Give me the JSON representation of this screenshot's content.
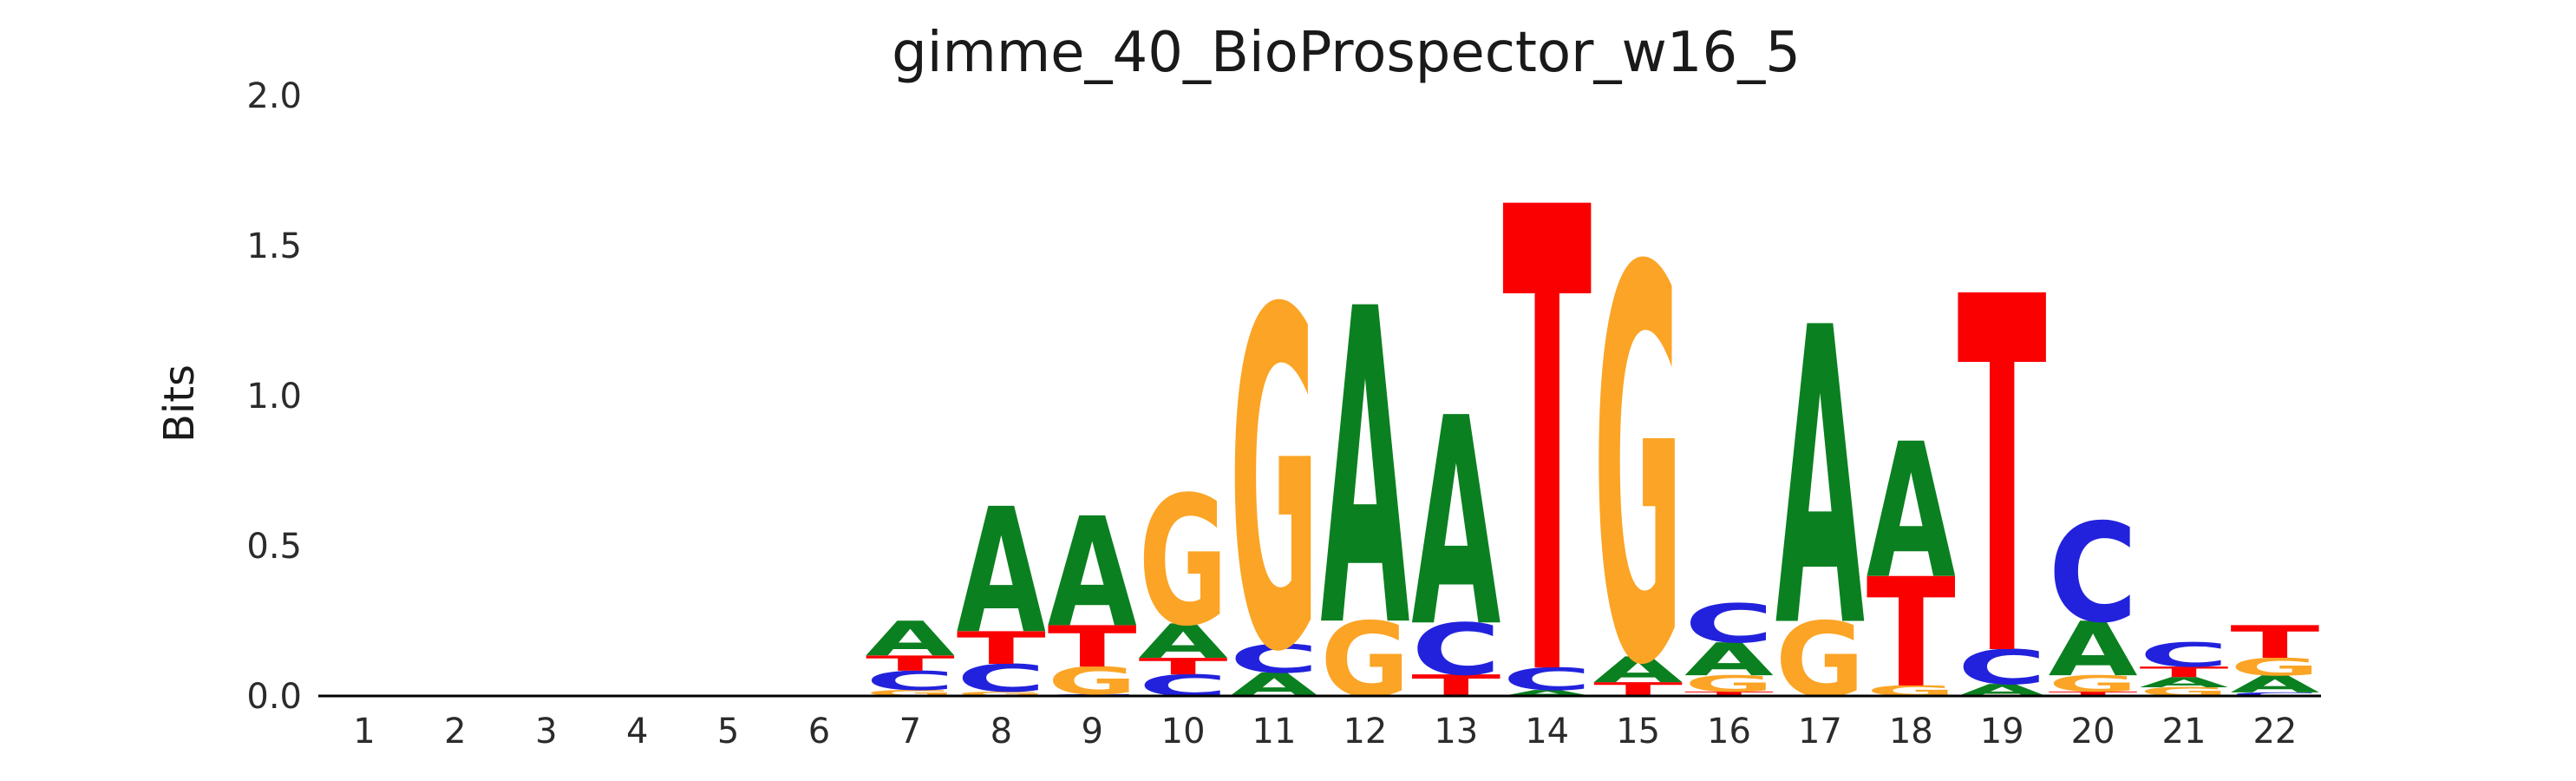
{
  "title": "gimme_40_BioProspector_w16_5",
  "colors": {
    "A": "#0B8020",
    "C": "#2222DD",
    "G": "#FBA426",
    "T": "#FA0000"
  },
  "y_axis": {
    "label": "Bits",
    "tick_labels": [
      "0.0",
      "0.5",
      "1.0",
      "1.5",
      "2.0"
    ],
    "tick_values": [
      0.0,
      0.5,
      1.0,
      1.5,
      2.0
    ]
  },
  "x_axis": {
    "tick_labels": [
      "1",
      "2",
      "3",
      "4",
      "5",
      "6",
      "7",
      "8",
      "9",
      "10",
      "11",
      "12",
      "13",
      "14",
      "15",
      "16",
      "17",
      "18",
      "19",
      "20",
      "21",
      "22"
    ]
  },
  "chart_data": {
    "type": "sequence-logo",
    "title": "gimme_40_BioProspector_w16_5",
    "xlabel": "",
    "ylabel": "Bits",
    "ylim": [
      0,
      2
    ],
    "grid": false,
    "n_positions": 22,
    "positions": [
      {
        "position": 1,
        "stack": []
      },
      {
        "position": 2,
        "stack": []
      },
      {
        "position": 3,
        "stack": []
      },
      {
        "position": 4,
        "stack": []
      },
      {
        "position": 5,
        "stack": []
      },
      {
        "position": 6,
        "stack": []
      },
      {
        "position": 7,
        "stack": [
          {
            "base": "G",
            "bits": 0.02
          },
          {
            "base": "C",
            "bits": 0.064
          },
          {
            "base": "T",
            "bits": 0.051
          },
          {
            "base": "A",
            "bits": 0.116
          }
        ]
      },
      {
        "position": 8,
        "stack": [
          {
            "base": "G",
            "bits": 0.015
          },
          {
            "base": "C",
            "bits": 0.092
          },
          {
            "base": "T",
            "bits": 0.109
          },
          {
            "base": "A",
            "bits": 0.418
          }
        ]
      },
      {
        "position": 9,
        "stack": [
          {
            "base": "C",
            "bits": 0.006
          },
          {
            "base": "G",
            "bits": 0.092
          },
          {
            "base": "T",
            "bits": 0.138
          },
          {
            "base": "A",
            "bits": 0.366
          }
        ]
      },
      {
        "position": 10,
        "stack": [
          {
            "base": "C",
            "bits": 0.072
          },
          {
            "base": "T",
            "bits": 0.055
          },
          {
            "base": "A",
            "bits": 0.115
          },
          {
            "base": "G",
            "bits": 0.432
          }
        ]
      },
      {
        "position": 11,
        "stack": [
          {
            "base": "A",
            "bits": 0.078
          },
          {
            "base": "C",
            "bits": 0.095
          },
          {
            "base": "G",
            "bits": 1.13
          }
        ]
      },
      {
        "position": 12,
        "stack": [
          {
            "base": "G",
            "bits": 0.251
          },
          {
            "base": "A",
            "bits": 1.055
          }
        ]
      },
      {
        "position": 13,
        "stack": [
          {
            "base": "T",
            "bits": 0.072
          },
          {
            "base": "C",
            "bits": 0.173
          },
          {
            "base": "A",
            "bits": 0.695
          }
        ]
      },
      {
        "position": 14,
        "stack": [
          {
            "base": "A",
            "bits": 0.02
          },
          {
            "base": "C",
            "bits": 0.075
          },
          {
            "base": "T",
            "bits": 1.55
          }
        ]
      },
      {
        "position": 15,
        "stack": [
          {
            "base": "T",
            "bits": 0.046
          },
          {
            "base": "A",
            "bits": 0.086
          },
          {
            "base": "G",
            "bits": 1.31
          }
        ]
      },
      {
        "position": 16,
        "stack": [
          {
            "base": "T",
            "bits": 0.015
          },
          {
            "base": "G",
            "bits": 0.054
          },
          {
            "base": "A",
            "bits": 0.11
          },
          {
            "base": "C",
            "bits": 0.13
          }
        ]
      },
      {
        "position": 17,
        "stack": [
          {
            "base": "G",
            "bits": 0.25
          },
          {
            "base": "A",
            "bits": 0.993
          }
        ]
      },
      {
        "position": 18,
        "stack": [
          {
            "base": "G",
            "bits": 0.035
          },
          {
            "base": "T",
            "bits": 0.365
          },
          {
            "base": "A",
            "bits": 0.451
          }
        ]
      },
      {
        "position": 19,
        "stack": [
          {
            "base": "A",
            "bits": 0.04
          },
          {
            "base": "C",
            "bits": 0.116
          },
          {
            "base": "T",
            "bits": 1.19
          }
        ]
      },
      {
        "position": 20,
        "stack": [
          {
            "base": "T",
            "bits": 0.015
          },
          {
            "base": "G",
            "bits": 0.054
          },
          {
            "base": "A",
            "bits": 0.182
          },
          {
            "base": "C",
            "bits": 0.331
          }
        ]
      },
      {
        "position": 21,
        "stack": [
          {
            "base": "G",
            "bits": 0.029
          },
          {
            "base": "A",
            "bits": 0.034
          },
          {
            "base": "T",
            "bits": 0.035
          },
          {
            "base": "C",
            "bits": 0.081
          }
        ]
      },
      {
        "position": 22,
        "stack": [
          {
            "base": "C",
            "bits": 0.012
          },
          {
            "base": "A",
            "bits": 0.057
          },
          {
            "base": "G",
            "bits": 0.058
          },
          {
            "base": "T",
            "bits": 0.109
          }
        ]
      }
    ]
  },
  "layout_note": "sequence logo, bottom axis line only, no gridlines"
}
